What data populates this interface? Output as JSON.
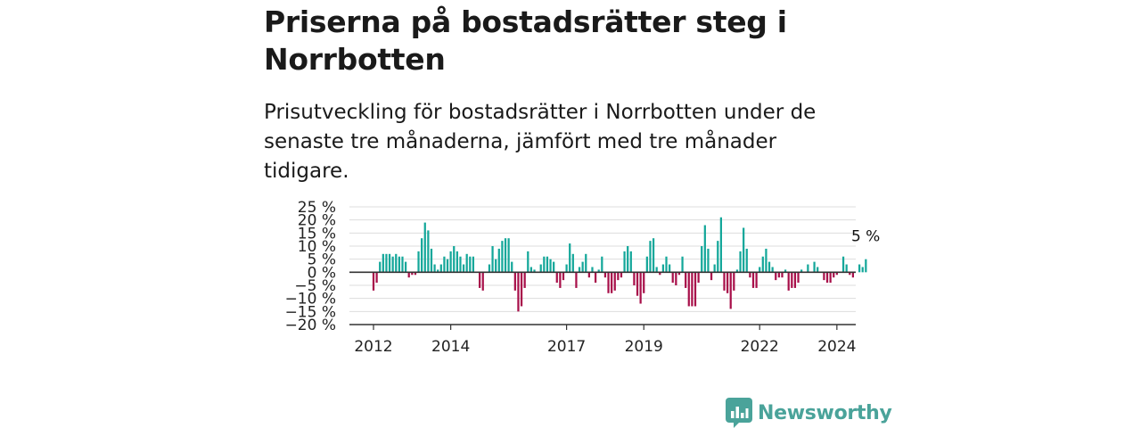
{
  "title": "Priserna på bostadsrätter steg i Norrbotten",
  "subtitle": "Prisutveckling för bostadsrätter i Norrbotten under de senaste tre månaderna, jämfört med tre månader tidigare.",
  "brand": {
    "name": "Newsworthy"
  },
  "colors": {
    "positive": "#14a79a",
    "negative": "#a8104a",
    "grid": "#dddddd",
    "axis": "#333333",
    "brand": "#4aa39a"
  },
  "chart_data": {
    "type": "bar",
    "ylim": [
      -20,
      25
    ],
    "yticks": [
      25,
      20,
      15,
      10,
      5,
      0,
      -5,
      -10,
      -15,
      -20
    ],
    "ytick_labels": [
      "25 %",
      "20 %",
      "15 %",
      "10 %",
      "5 %",
      "0 %",
      "−5 %",
      "−10 %",
      "−15 %",
      "−20 %"
    ],
    "xtick_labels": [
      {
        "label": "2012",
        "x": "2012-01"
      },
      {
        "label": "2014",
        "x": "2014-01"
      },
      {
        "label": "2017",
        "x": "2017-01"
      },
      {
        "label": "2019",
        "x": "2019-01"
      },
      {
        "label": "2022",
        "x": "2022-01"
      },
      {
        "label": "2024",
        "x": "2024-01"
      }
    ],
    "start_month": "2012-01",
    "grid": true,
    "annotation": "5 %",
    "values": [
      -7,
      -4,
      4,
      7,
      7,
      7,
      6,
      7,
      6,
      6,
      4,
      -2,
      -1,
      -1,
      8,
      13,
      19,
      16,
      9,
      3,
      1,
      3,
      6,
      5,
      8,
      10,
      8,
      6,
      3,
      7,
      6,
      6,
      0,
      -6,
      -7,
      0,
      3,
      10,
      5,
      9,
      12,
      13,
      13,
      4,
      -7,
      -15,
      -13,
      -6,
      8,
      2,
      1,
      0,
      3,
      6,
      6,
      5,
      4,
      -4,
      -6,
      -3,
      3,
      11,
      7,
      -6,
      2,
      4,
      7,
      -2,
      2,
      -4,
      1,
      6,
      -2,
      -8,
      -8,
      -7,
      -3,
      -2,
      8,
      10,
      8,
      -5,
      -9,
      -12,
      -8,
      6,
      12,
      13,
      2,
      -1,
      3,
      6,
      3,
      -4,
      -5,
      -1,
      6,
      -6,
      -13,
      -13,
      -13,
      -4,
      10,
      18,
      9,
      -3,
      3,
      12,
      21,
      -7,
      -8,
      -14,
      -7,
      1,
      8,
      17,
      9,
      -2,
      -6,
      -6,
      2,
      6,
      9,
      4,
      2,
      -3,
      -2,
      -2,
      1,
      -7,
      -6,
      -6,
      -4,
      1,
      0,
      3,
      0,
      4,
      2,
      0,
      -3,
      -4,
      -4,
      -2,
      -1,
      0,
      6,
      3,
      -1,
      -2,
      0,
      3,
      2,
      5
    ]
  }
}
